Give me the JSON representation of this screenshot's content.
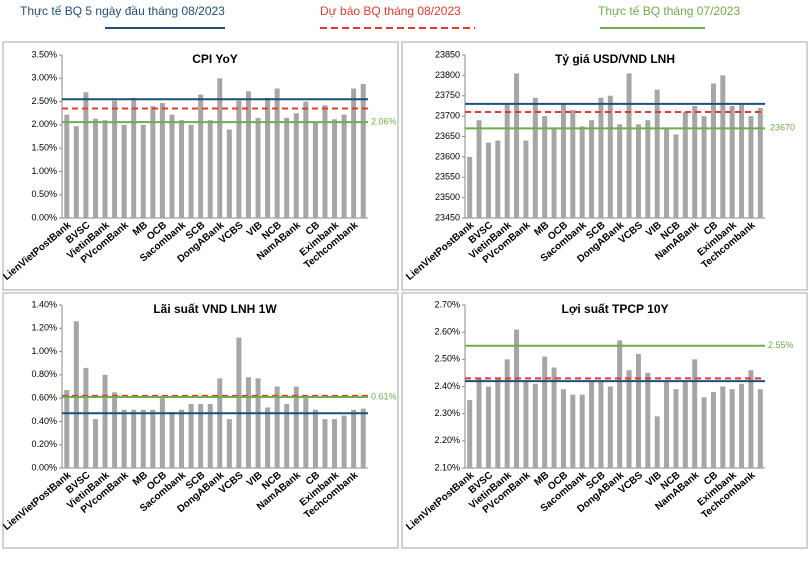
{
  "legend": [
    {
      "name": "Thực tế BQ 5 ngày đầu tháng 08/2023",
      "color": "#1f4e79",
      "style": "solid"
    },
    {
      "name": "Dự báo BQ tháng 08/2023",
      "color": "#e8382c",
      "style": "dashed"
    },
    {
      "name": "Thực tế BQ tháng 07/2023",
      "color": "#70ad47",
      "style": "solid"
    }
  ],
  "chart_data": [
    {
      "type": "bar",
      "title": "CPI YoY",
      "color": "#a6a6a6",
      "categories": [
        "LienVietPostBank",
        null,
        "BVSC",
        null,
        "VietinBank",
        null,
        "PVcomBank",
        null,
        "MB",
        null,
        "OCB",
        null,
        "Sacombank",
        null,
        "SCB",
        null,
        "DongABank",
        null,
        "VCBS",
        null,
        "VIB",
        null,
        "NCB",
        null,
        "NamABank",
        null,
        "CB",
        null,
        "Eximbank",
        null,
        "Techcombank",
        null
      ],
      "values": [
        2.22,
        1.97,
        2.7,
        2.13,
        2.1,
        2.52,
        2.0,
        2.58,
        2.0,
        2.4,
        2.47,
        2.22,
        2.1,
        2.0,
        2.65,
        2.1,
        3.0,
        1.9,
        2.52,
        2.72,
        2.15,
        2.58,
        2.78,
        2.15,
        2.25,
        2.5,
        2.05,
        2.42,
        2.12,
        2.22,
        2.78,
        2.88
      ],
      "ylim": [
        0,
        3.5
      ],
      "yticks": [
        {
          "value": 0,
          "label": "0.00%"
        },
        {
          "value": 0.5,
          "label": "0.50%"
        },
        {
          "value": 1,
          "label": "1.00%"
        },
        {
          "value": 1.5,
          "label": "1.50%"
        },
        {
          "value": 2,
          "label": "2.00%"
        },
        {
          "value": 2.5,
          "label": "2.50%"
        },
        {
          "value": 3,
          "label": "3.00%"
        },
        {
          "value": 3.5,
          "label": "3.50%"
        }
      ],
      "reference_lines": [
        {
          "value": 2.55,
          "color": "#1f4e79"
        },
        {
          "value": 2.35,
          "color": "#e8382c",
          "style": "dashed"
        },
        {
          "value": 2.06,
          "color": "#70ad47",
          "label": "2.06%"
        }
      ]
    },
    {
      "type": "bar",
      "title": "Tỷ giá USD/VND LNH",
      "color": "#a6a6a6",
      "categories": [
        "LienVietPostBank",
        null,
        "BVSC",
        null,
        "VietinBank",
        null,
        "PVcomBank",
        null,
        "MB",
        null,
        "OCB",
        null,
        "Sacombank",
        null,
        "SCB",
        null,
        "DongABank",
        null,
        "VCBS",
        null,
        "VIB",
        null,
        "NCB",
        null,
        "NamABank",
        null,
        "CB",
        null,
        "Eximbank",
        null,
        "Techcombank",
        null
      ],
      "values": [
        23600,
        23690,
        23635,
        23640,
        23730,
        23805,
        23640,
        23745,
        23700,
        23670,
        23730,
        23715,
        23675,
        23690,
        23745,
        23750,
        23680,
        23805,
        23680,
        23690,
        23765,
        23670,
        23655,
        23710,
        23725,
        23700,
        23780,
        23800,
        23725,
        23730,
        23700,
        23720
      ],
      "ylim": [
        23450,
        23850
      ],
      "yticks": [
        23450,
        23500,
        23550,
        23600,
        23650,
        23700,
        23750,
        23800,
        23850
      ],
      "reference_lines": [
        {
          "value": 23730,
          "color": "#1f4e79"
        },
        {
          "value": 23710,
          "color": "#e8382c",
          "style": "dashed"
        },
        {
          "value": 23670,
          "color": "#70ad47",
          "show_label": true
        }
      ]
    },
    {
      "type": "bar",
      "title": "Lãi suất VND LNH 1W",
      "color": "#a6a6a6",
      "categories": [
        "LienVietPostBank",
        null,
        "BVSC",
        null,
        "VietinBank",
        null,
        "PVcomBank",
        null,
        "MB",
        null,
        "OCB",
        null,
        "Sacombank",
        null,
        "SCB",
        null,
        "DongABank",
        null,
        "VCBS",
        null,
        "VIB",
        null,
        "NCB",
        null,
        "NamABank",
        null,
        "CB",
        null,
        "Eximbank",
        null,
        "Techcombank",
        null
      ],
      "values": [
        0.67,
        1.26,
        0.86,
        0.42,
        0.8,
        0.65,
        0.5,
        0.5,
        0.5,
        0.5,
        0.6,
        0.48,
        0.5,
        0.55,
        0.55,
        0.55,
        0.77,
        0.42,
        1.12,
        0.78,
        0.77,
        0.52,
        0.7,
        0.55,
        0.7,
        0.6,
        0.5,
        0.42,
        0.42,
        0.45,
        0.5,
        0.51
      ],
      "ylim": [
        0,
        1.4
      ],
      "yticks": [
        {
          "value": 0,
          "label": "0.00%"
        },
        {
          "value": 0.2,
          "label": "0.20%"
        },
        {
          "value": 0.4,
          "label": "0.40%"
        },
        {
          "value": 0.6,
          "label": "0.60%"
        },
        {
          "value": 0.8,
          "label": "0.80%"
        },
        {
          "value": 1,
          "label": "1.00%"
        },
        {
          "value": 1.2,
          "label": "1.20%"
        },
        {
          "value": 1.4,
          "label": "1.40%"
        }
      ],
      "reference_lines": [
        {
          "value": 0.47,
          "color": "#1f4e79"
        },
        {
          "value": 0.62,
          "color": "#e8382c",
          "style": "dashed"
        },
        {
          "value": 0.61,
          "color": "#70ad47",
          "label": "0.61%"
        }
      ]
    },
    {
      "type": "bar",
      "title": "Lợi suất TPCP 10Y",
      "color": "#a6a6a6",
      "categories": [
        "LienVietPostBank",
        null,
        "BVSC",
        null,
        "VietinBank",
        null,
        "PVcomBank",
        null,
        "MB",
        null,
        "OCB",
        null,
        "Sacombank",
        null,
        "SCB",
        null,
        "DongABank",
        null,
        "VCBS",
        null,
        "VIB",
        null,
        "NCB",
        null,
        "NamABank",
        null,
        "CB",
        null,
        "Eximbank",
        null,
        "Techcombank",
        null
      ],
      "values": [
        2.35,
        2.43,
        2.4,
        2.43,
        2.5,
        2.61,
        2.42,
        2.41,
        2.51,
        2.47,
        2.39,
        2.37,
        2.37,
        2.42,
        2.42,
        2.4,
        2.57,
        2.46,
        2.52,
        2.45,
        2.29,
        2.42,
        2.39,
        2.42,
        2.5,
        2.36,
        2.38,
        2.4,
        2.39,
        2.41,
        2.46,
        2.39
      ],
      "ylim": [
        2.1,
        2.7
      ],
      "yticks": [
        {
          "value": 2.1,
          "label": "2.10%"
        },
        {
          "value": 2.2,
          "label": "2.20%"
        },
        {
          "value": 2.3,
          "label": "2.30%"
        },
        {
          "value": 2.4,
          "label": "2.40%"
        },
        {
          "value": 2.5,
          "label": "2.50%"
        },
        {
          "value": 2.6,
          "label": "2.60%"
        },
        {
          "value": 2.7,
          "label": "2.70%"
        }
      ],
      "reference_lines": [
        {
          "value": 2.42,
          "color": "#1f4e79"
        },
        {
          "value": 2.43,
          "color": "#e8382c",
          "style": "dashed"
        },
        {
          "value": 2.55,
          "color": "#70ad47",
          "label": "2.55%"
        }
      ]
    }
  ]
}
